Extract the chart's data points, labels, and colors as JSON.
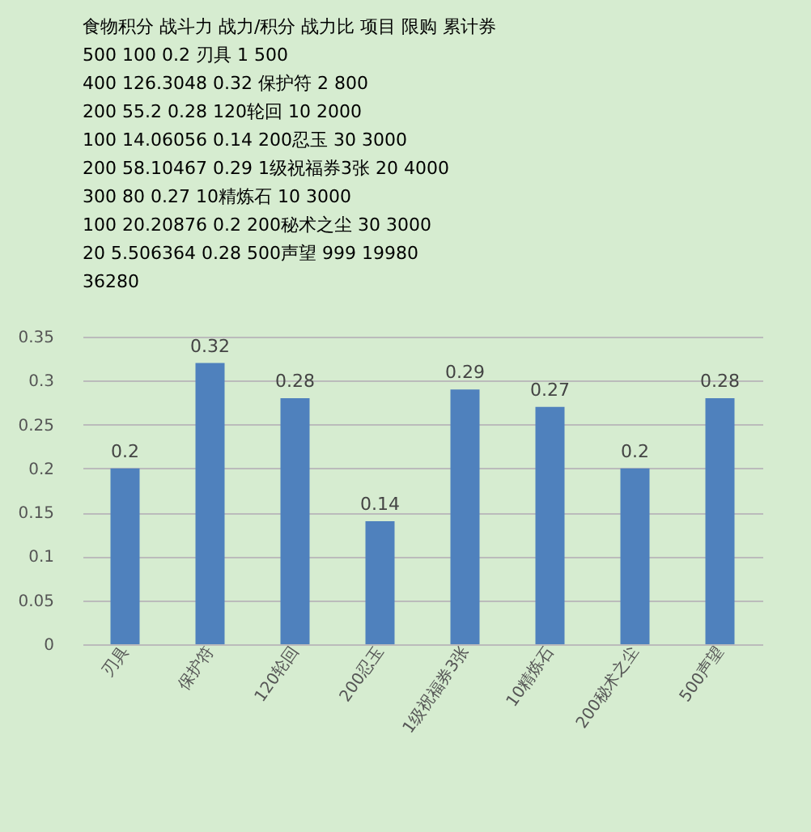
{
  "chart_data": {
    "type": "bar",
    "annotations": [
      "食物积分  战斗力  战力/积分  战力比 项目  限购  累计券",
      "500  100  0.2  刃具  1  500",
      "400  126.3048  0.32  保护符  2  800",
      "200  55.2  0.28  120轮回  10  2000",
      "100  14.06056  0.14  200忍玉  30  3000",
      "200  58.10467  0.29  1级祝福券3张  20  4000",
      "300  80  0.27  10精炼石  10  3000",
      "100  20.20876  0.2  200秘术之尘  30  3000",
      "20  5.506364  0.28  500声望  999  19980",
      "36280"
    ],
    "categories": [
      "刃具",
      "保护符",
      "120轮回",
      "200忍玉",
      "1级祝福券3张",
      "10精炼石",
      "200秘术之尘",
      "500声望"
    ],
    "values": [
      0.2,
      0.32,
      0.28,
      0.14,
      0.29,
      0.27,
      0.2,
      0.28
    ],
    "color": "#4f81bd",
    "ylim": [
      0,
      0.35
    ],
    "yticks": [
      0,
      0.05,
      0.1,
      0.15,
      0.2,
      0.25,
      0.3,
      0.35
    ],
    "grid": "y",
    "data_labels": true
  }
}
